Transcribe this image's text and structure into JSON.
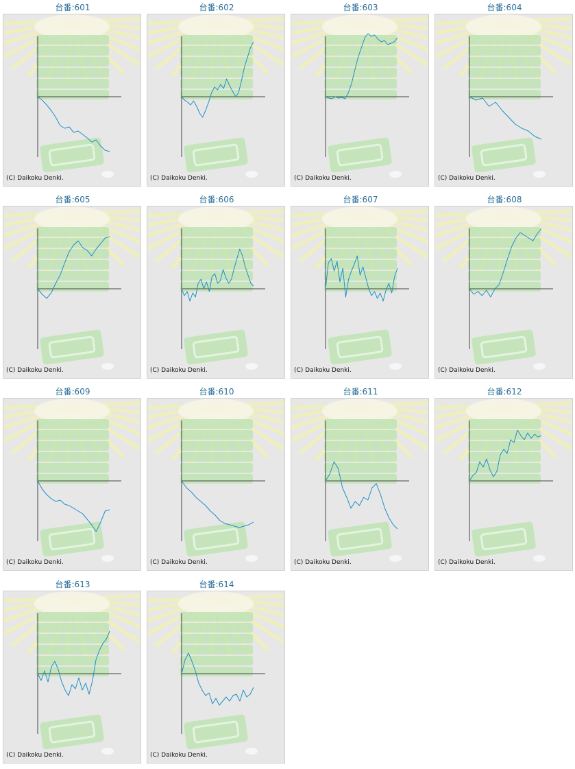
{
  "copyright": "(C) Daikoku Denki.",
  "colors": {
    "line": "#1f8fc7",
    "axis": "#444444",
    "panel_bg": "#e7e7e7",
    "title": "#2a6f97",
    "art_green": "#bfe3b4",
    "art_yellow": "#f2f0b8"
  },
  "machines": [
    {
      "title": "台番:601",
      "series": [
        0,
        -5,
        -12,
        -20,
        -30,
        -42,
        -46,
        -44,
        -52,
        -50,
        -55,
        -60,
        -66,
        -63,
        -72,
        -78,
        -80
      ]
    },
    {
      "title": "台番:602",
      "series": [
        0,
        -5,
        -8,
        -12,
        -6,
        -14,
        -24,
        -30,
        -20,
        -8,
        6,
        14,
        10,
        18,
        12,
        26,
        16,
        8,
        0,
        6,
        24,
        44,
        58,
        72,
        80
      ]
    },
    {
      "title": "台番:603",
      "series": [
        0,
        -2,
        -3,
        0,
        -2,
        -1,
        -3,
        6,
        20,
        40,
        58,
        72,
        86,
        92,
        88,
        90,
        84,
        80,
        82,
        76,
        78,
        80,
        86
      ]
    },
    {
      "title": "台番:604",
      "series": [
        0,
        -5,
        -2,
        -14,
        -8,
        -20,
        -30,
        -40,
        -46,
        -50,
        -58,
        -62
      ]
    },
    {
      "title": "台番:605",
      "series": [
        0,
        -8,
        -14,
        -6,
        8,
        20,
        38,
        54,
        64,
        70,
        60,
        56,
        48,
        58,
        66,
        74,
        76
      ]
    },
    {
      "title": "台番:606",
      "series": [
        0,
        -10,
        -4,
        -18,
        -6,
        -12,
        8,
        14,
        0,
        10,
        -4,
        18,
        22,
        8,
        12,
        28,
        16,
        8,
        14,
        30,
        44,
        58,
        48,
        32,
        20,
        8,
        4
      ]
    },
    {
      "title": "台番:607",
      "series": [
        0,
        38,
        44,
        26,
        40,
        10,
        30,
        -12,
        14,
        26,
        36,
        48,
        20,
        32,
        16,
        0,
        -10,
        -4,
        -14,
        -6,
        -18,
        -2,
        8,
        -6,
        18,
        30
      ]
    },
    {
      "title": "台番:608",
      "series": [
        0,
        -8,
        -4,
        -10,
        -2,
        -12,
        0,
        6,
        24,
        44,
        62,
        74,
        82,
        78,
        74,
        70,
        80,
        88
      ]
    },
    {
      "title": "台番:609",
      "series": [
        0,
        -12,
        -20,
        -26,
        -30,
        -28,
        -34,
        -36,
        -40,
        -44,
        -48,
        -56,
        -64,
        -74,
        -60,
        -44,
        -42
      ]
    },
    {
      "title": "台番:610",
      "series": [
        0,
        -10,
        -16,
        -24,
        -30,
        -36,
        -44,
        -50,
        -58,
        -62,
        -64,
        -66,
        -68,
        -66,
        -64,
        -60
      ]
    },
    {
      "title": "台番:611",
      "series": [
        0,
        10,
        28,
        18,
        -10,
        -24,
        -40,
        -30,
        -36,
        -24,
        -28,
        -10,
        -4,
        -20,
        -40,
        -54,
        -64,
        -70
      ]
    },
    {
      "title": "台番:612",
      "series": [
        0,
        8,
        12,
        28,
        20,
        32,
        16,
        6,
        14,
        38,
        46,
        40,
        60,
        56,
        74,
        66,
        60,
        70,
        62,
        68,
        64,
        66
      ]
    },
    {
      "title": "台番:613",
      "series": [
        0,
        -10,
        4,
        -12,
        10,
        18,
        6,
        -12,
        -24,
        -32,
        -16,
        -22,
        -6,
        -24,
        -14,
        -30,
        -10,
        20,
        34,
        44,
        50,
        62
      ]
    },
    {
      "title": "台番:614",
      "series": [
        0,
        20,
        30,
        18,
        4,
        -14,
        -24,
        -32,
        -28,
        -44,
        -36,
        -46,
        -40,
        -34,
        -40,
        -32,
        -30,
        -40,
        -24,
        -34,
        -30,
        -20
      ]
    }
  ]
}
